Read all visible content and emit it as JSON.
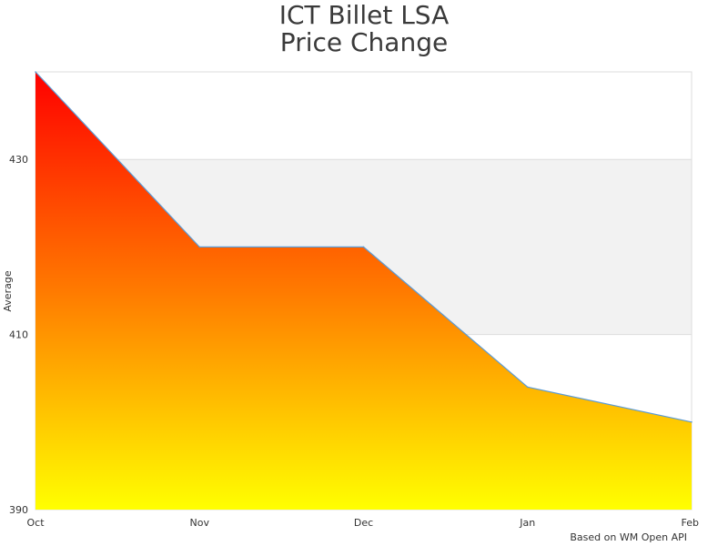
{
  "chart_data": {
    "type": "area",
    "title": [
      "ICT Billet LSA",
      "Price Change"
    ],
    "xlabel": "",
    "ylabel": "Average",
    "categories": [
      "Oct",
      "Nov",
      "Dec",
      "Jan",
      "Feb"
    ],
    "series": [
      {
        "name": "Average",
        "values": [
          440,
          420,
          420,
          404,
          400
        ]
      }
    ],
    "ylim": [
      390,
      440
    ],
    "yticks": [
      390,
      410,
      430
    ],
    "grid": "alternating-bands",
    "colors": {
      "gradient_top": "#ff0000",
      "gradient_mid": "#ff7a00",
      "gradient_bottom": "#ffff00",
      "line": "#5b9bd5",
      "band": "#f2f2f2",
      "grid": "#dddddd"
    }
  },
  "credit": "Based on WM Open API"
}
